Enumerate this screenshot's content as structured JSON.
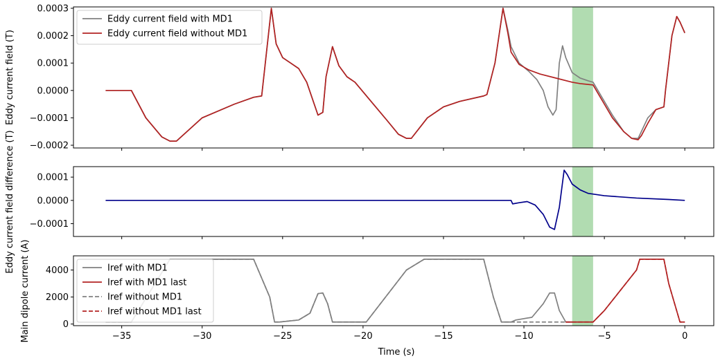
{
  "colors": {
    "gray": "#808080",
    "red": "#b22222",
    "navy": "#00008b",
    "band": "#2ca02c"
  },
  "chart_data": [
    {
      "type": "line",
      "ylabel": "Eddy current field (T)",
      "ylim": [
        -0.00021,
        0.000305
      ],
      "yticks": [
        -0.0002,
        -0.0001,
        0.0,
        0.0001,
        0.0002,
        0.0003
      ],
      "ytick_labels": [
        "−0.0002",
        "−0.0001",
        "0.0000",
        "0.0001",
        "0.0002",
        "0.0003"
      ],
      "xlim": [
        -38.0,
        1.8
      ],
      "shaded_band": [
        -7.0,
        -5.7
      ],
      "legend": {
        "placement": "upper left",
        "entries": [
          "Eddy current field with MD1",
          "Eddy current field without MD1"
        ]
      },
      "series": [
        {
          "name": "Eddy current field with MD1",
          "color": "#808080",
          "x": [
            -36,
            -34.4,
            -33.5,
            -32.5,
            -32.0,
            -31.6,
            -30,
            -28,
            -26.8,
            -26.3,
            -25.7,
            -25.4,
            -25.0,
            -24.5,
            -24.0,
            -23.5,
            -22.8,
            -22.5,
            -22.3,
            -21.9,
            -21.5,
            -21.0,
            -20.5,
            -19.5,
            -18.5,
            -17.8,
            -17.3,
            -17.0,
            -16.0,
            -15.0,
            -14.0,
            -12.5,
            -12.3,
            -11.8,
            -11.3,
            -11.0,
            -10.8,
            -10.3,
            -9.7,
            -9.2,
            -8.8,
            -8.5,
            -8.2,
            -8.0,
            -7.8,
            -7.6,
            -7.4,
            -7.0,
            -6.5,
            -6.0,
            -5.7,
            -5.4,
            -5.0,
            -4.5,
            -3.8,
            -3.3,
            -2.9,
            -2.7,
            -2.3,
            -1.8,
            -1.3,
            -1.2,
            -0.8,
            -0.5,
            -0.3,
            0.0
          ],
          "y": [
            0.0,
            0.0,
            -0.0001,
            -0.00017,
            -0.000185,
            -0.000185,
            -0.0001,
            -5e-05,
            -2.5e-05,
            -2e-05,
            0.0003,
            0.00017,
            0.00012,
            0.0001,
            8e-05,
            3e-05,
            -9e-05,
            -8e-05,
            5e-05,
            0.00016,
            9e-05,
            5e-05,
            3e-05,
            -4e-05,
            -0.00011,
            -0.00016,
            -0.000175,
            -0.000175,
            -0.0001,
            -6e-05,
            -4e-05,
            -2e-05,
            -1.5e-05,
            0.0001,
            0.0003,
            0.00022,
            0.00016,
            0.0001,
            7e-05,
            4e-05,
            0.0,
            -6e-05,
            -9e-05,
            -7e-05,
            0.0001,
            0.000163,
            0.00012,
            6.5e-05,
            4.5e-05,
            3.5e-05,
            3e-05,
            0.0,
            -4e-05,
            -9e-05,
            -0.00015,
            -0.000175,
            -0.000175,
            -0.00015,
            -0.0001,
            -7e-05,
            -6e-05,
            0.0,
            0.0002,
            0.00027,
            0.00025,
            0.00021
          ]
        },
        {
          "name": "Eddy current field without MD1",
          "color": "#b22222",
          "x": [
            -36,
            -34.4,
            -33.5,
            -32.5,
            -32.0,
            -31.6,
            -30,
            -28,
            -26.8,
            -26.3,
            -25.7,
            -25.4,
            -25.0,
            -24.5,
            -24.0,
            -23.5,
            -22.8,
            -22.5,
            -22.3,
            -21.9,
            -21.5,
            -21.0,
            -20.5,
            -19.5,
            -18.5,
            -17.8,
            -17.3,
            -17.0,
            -16.0,
            -15.0,
            -14.0,
            -12.5,
            -12.3,
            -11.8,
            -11.3,
            -11.0,
            -10.8,
            -10.3,
            -9.7,
            -9.0,
            -8.0,
            -7.0,
            -6.5,
            -5.7,
            -5.4,
            -5.0,
            -4.5,
            -3.8,
            -3.3,
            -2.9,
            -2.7,
            -2.3,
            -1.8,
            -1.3,
            -1.2,
            -0.8,
            -0.5,
            -0.3,
            0.0
          ],
          "y": [
            0.0,
            0.0,
            -0.0001,
            -0.00017,
            -0.000185,
            -0.000185,
            -0.0001,
            -5e-05,
            -2.5e-05,
            -2e-05,
            0.0003,
            0.00017,
            0.00012,
            0.0001,
            8e-05,
            3e-05,
            -9e-05,
            -8e-05,
            5e-05,
            0.00016,
            9e-05,
            5e-05,
            3e-05,
            -4e-05,
            -0.00011,
            -0.00016,
            -0.000175,
            -0.000175,
            -0.0001,
            -6e-05,
            -4e-05,
            -2e-05,
            -1.5e-05,
            0.0001,
            0.0003,
            0.00021,
            0.00014,
            9.5e-05,
            7.5e-05,
            6e-05,
            4.5e-05,
            3e-05,
            2.5e-05,
            2e-05,
            -1e-05,
            -5e-05,
            -0.0001,
            -0.00015,
            -0.000175,
            -0.00018,
            -0.000165,
            -0.00012,
            -7e-05,
            -6e-05,
            0.0,
            0.0002,
            0.00027,
            0.00025,
            0.00021
          ]
        }
      ]
    },
    {
      "type": "line",
      "ylabel": "Eddy current field difference (T)",
      "ylim": [
        -0.000155,
        0.000145
      ],
      "yticks": [
        -0.0001,
        0.0,
        0.0001
      ],
      "ytick_labels": [
        "−0.0001",
        "0.0000",
        "0.0001"
      ],
      "xlim": [
        -38.0,
        1.8
      ],
      "shaded_band": [
        -7.0,
        -5.7
      ],
      "series": [
        {
          "color": "#00008b",
          "x": [
            -36,
            -10.8,
            -10.7,
            -10.3,
            -9.8,
            -9.3,
            -8.8,
            -8.4,
            -8.1,
            -7.8,
            -7.5,
            -7.3,
            -7.0,
            -6.5,
            -6.0,
            -5.0,
            -3.0,
            -1.0,
            0.0
          ],
          "y": [
            0.0,
            0.0,
            -1.5e-05,
            -1e-05,
            -5e-06,
            -2e-05,
            -6e-05,
            -0.000115,
            -0.000125,
            -3e-05,
            0.00013,
            0.00011,
            7e-05,
            4.5e-05,
            3e-05,
            2e-05,
            1e-05,
            4e-06,
            0.0
          ]
        }
      ]
    },
    {
      "type": "line",
      "ylabel": "Main dipole current (A)",
      "xlabel": "Time (s)",
      "ylim": [
        -120,
        5050
      ],
      "yticks": [
        0,
        2000,
        4000
      ],
      "ytick_labels": [
        "0",
        "2000",
        "4000"
      ],
      "xlim": [
        -38.0,
        1.8
      ],
      "xticks": [
        -35,
        -30,
        -25,
        -20,
        -15,
        -10,
        -5,
        0
      ],
      "xtick_labels": [
        "−35",
        "−30",
        "−25",
        "−20",
        "−15",
        "−10",
        "−5",
        "0"
      ],
      "shaded_band": [
        -7.0,
        -5.7
      ],
      "legend": {
        "placement": "upper left",
        "entries": [
          "Iref with MD1",
          "Iref with MD1 last",
          "Iref without MD1",
          "Iref without MD1 last"
        ]
      },
      "series": [
        {
          "name": "Iref with MD1",
          "color": "#808080",
          "dash": "solid",
          "x": [
            -36,
            -34.4,
            -32.0,
            -31.5,
            -26.8,
            -25.8,
            -25.5,
            -25.2,
            -24.0,
            -23.3,
            -22.8,
            -22.5,
            -22.2,
            -21.9,
            -20.0,
            -19.8,
            -17.3,
            -16.2,
            -12.5,
            -11.9,
            -11.4,
            -10.8,
            -10.5,
            -9.5,
            -8.8,
            -8.4,
            -8.1,
            -7.8,
            -7.4,
            -7.0
          ],
          "y": [
            150,
            150,
            4800,
            4800,
            4800,
            2000,
            150,
            150,
            300,
            800,
            2250,
            2300,
            1500,
            150,
            150,
            150,
            4000,
            4800,
            4800,
            2000,
            150,
            150,
            300,
            500,
            1500,
            2300,
            2300,
            1000,
            150,
            150
          ]
        },
        {
          "name": "Iref with MD1 last",
          "color": "#b22222",
          "dash": "solid",
          "x": [
            -7.4,
            -5.7,
            -5.0,
            -4.0,
            -3.0,
            -2.8,
            -1.3,
            -1.0,
            -0.3,
            -0.1,
            0.0
          ],
          "y": [
            150,
            150,
            1000,
            2500,
            4000,
            4800,
            4800,
            3000,
            150,
            150,
            150
          ]
        },
        {
          "name": "Iref without MD1",
          "color": "#808080",
          "dash": "dashed",
          "x": [
            -36,
            -34.4,
            -32.0,
            -31.5,
            -26.8,
            -25.8,
            -25.5,
            -25.2,
            -24.0,
            -23.3,
            -22.8,
            -22.5,
            -22.2,
            -21.9,
            -20.0,
            -19.8,
            -17.3,
            -16.2,
            -12.5,
            -11.9,
            -11.4,
            -10.8,
            -10.5,
            -7.4
          ],
          "y": [
            150,
            150,
            4800,
            4800,
            4800,
            2000,
            150,
            150,
            300,
            800,
            2250,
            2300,
            1500,
            150,
            150,
            150,
            4000,
            4800,
            4800,
            2000,
            150,
            150,
            150,
            150
          ]
        },
        {
          "name": "Iref without MD1 last",
          "color": "#b22222",
          "dash": "dashed",
          "x": [
            -7.4,
            -5.7,
            -5.0,
            -4.0,
            -3.0,
            -2.8,
            -1.3,
            -1.0,
            -0.3,
            -0.1,
            0.0
          ],
          "y": [
            150,
            150,
            1000,
            2500,
            4000,
            4800,
            4800,
            3000,
            150,
            150,
            150
          ]
        }
      ]
    }
  ]
}
